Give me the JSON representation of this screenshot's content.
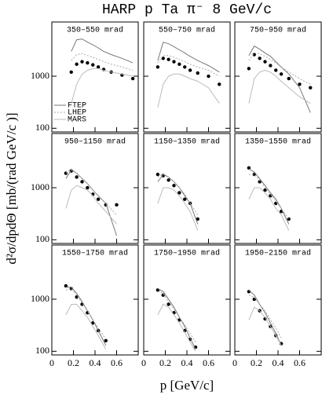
{
  "title": "HARP p Ta π⁻ 8 GeV/c",
  "x_label": "p [GeV/c]",
  "y_label": "d²σ/dpdΘ [mb/(rad GeV/c )]",
  "chart_data": [
    {
      "type": "line",
      "annotation": "350–550 mrad",
      "xlim": [
        0,
        0.8
      ],
      "xticks": [
        0,
        0.2,
        0.4,
        0.6
      ],
      "ylim": [
        85,
        11000
      ],
      "yticks": [
        100,
        1000
      ],
      "log_y": true,
      "x": [
        0.18,
        0.23,
        0.28,
        0.33,
        0.38,
        0.43,
        0.48,
        0.55,
        0.65,
        0.75
      ],
      "series": [
        {
          "color": "#000000",
          "marker": true,
          "values": [
            1200,
            1700,
            1900,
            1800,
            1650,
            1500,
            1350,
            1200,
            1050,
            900
          ]
        },
        {
          "name": "FTEP",
          "color": "#777777",
          "values": [
            3000,
            5000,
            5200,
            4500,
            4000,
            3500,
            3000,
            2600,
            2200,
            1800
          ]
        },
        {
          "name": "LHEP",
          "color": "#aaaaaa",
          "dashed": true,
          "values": [
            2000,
            2600,
            2700,
            2500,
            2300,
            2100,
            1900,
            1700,
            1500,
            1300
          ]
        },
        {
          "name": "MARS",
          "color": "#bbbbbb",
          "values": [
            300,
            700,
            1100,
            1300,
            1400,
            1400,
            1300,
            1200,
            1100,
            1000
          ]
        }
      ]
    },
    {
      "type": "line",
      "annotation": "550–750 mrad",
      "xlim": [
        0,
        0.8
      ],
      "xticks": [
        0,
        0.2,
        0.4,
        0.6
      ],
      "ylim": [
        85,
        11000
      ],
      "yticks": [
        100,
        1000
      ],
      "log_y": true,
      "x": [
        0.13,
        0.18,
        0.23,
        0.28,
        0.33,
        0.38,
        0.43,
        0.5,
        0.6,
        0.7
      ],
      "series": [
        {
          "color": "#000000",
          "marker": true,
          "values": [
            1500,
            2200,
            2100,
            1900,
            1700,
            1500,
            1300,
            1150,
            1000,
            700
          ]
        },
        {
          "color": "#777777",
          "values": [
            2000,
            4500,
            4200,
            3700,
            3200,
            2800,
            2400,
            2000,
            1600,
            1200
          ]
        },
        {
          "color": "#aaaaaa",
          "dashed": true,
          "values": [
            1800,
            2500,
            2500,
            2300,
            2100,
            1900,
            1700,
            1500,
            1300,
            1000
          ]
        },
        {
          "color": "#bbbbbb",
          "values": [
            250,
            700,
            1000,
            1100,
            1100,
            1000,
            900,
            800,
            600,
            300
          ]
        }
      ]
    },
    {
      "type": "line",
      "annotation": "750–950 mrad",
      "xlim": [
        0,
        0.8
      ],
      "xticks": [
        0,
        0.2,
        0.4,
        0.6
      ],
      "ylim": [
        85,
        11000
      ],
      "yticks": [
        100,
        1000
      ],
      "log_y": true,
      "x": [
        0.13,
        0.18,
        0.23,
        0.28,
        0.33,
        0.38,
        0.43,
        0.5,
        0.6,
        0.7
      ],
      "series": [
        {
          "color": "#000000",
          "marker": true,
          "values": [
            1400,
            2600,
            2200,
            1900,
            1600,
            1300,
            1100,
            900,
            700,
            600
          ]
        },
        {
          "color": "#777777",
          "values": [
            2500,
            3800,
            3300,
            2800,
            2400,
            1900,
            1500,
            1100,
            600,
            200
          ]
        },
        {
          "color": "#aaaaaa",
          "dashed": true,
          "values": [
            2000,
            2800,
            2700,
            2400,
            2100,
            1800,
            1500,
            1200,
            900,
            700
          ]
        },
        {
          "color": "#bbbbbb",
          "values": [
            300,
            900,
            1200,
            1300,
            1200,
            1000,
            800,
            600,
            400,
            300
          ]
        }
      ]
    },
    {
      "type": "line",
      "annotation": "950–1150 mrad",
      "xlim": [
        0,
        0.8
      ],
      "xticks": [
        0,
        0.2,
        0.4,
        0.6
      ],
      "ylim": [
        85,
        11000
      ],
      "yticks": [
        100,
        1000
      ],
      "log_y": true,
      "x": [
        0.13,
        0.18,
        0.23,
        0.28,
        0.33,
        0.38,
        0.43,
        0.5,
        0.6
      ],
      "series": [
        {
          "color": "#000000",
          "marker": true,
          "values": [
            1900,
            2100,
            1600,
            1300,
            1000,
            750,
            600,
            470,
            470
          ]
        },
        {
          "color": "#777777",
          "values": [
            1500,
            2200,
            1900,
            1500,
            1200,
            900,
            700,
            500,
            120
          ]
        },
        {
          "color": "#aaaaaa",
          "dashed": true,
          "values": [
            1900,
            2300,
            1900,
            1500,
            1200,
            900,
            700,
            500,
            300
          ]
        },
        {
          "color": "#bbbbbb",
          "values": [
            400,
            900,
            1100,
            1000,
            900,
            700,
            500,
            350,
            200
          ]
        }
      ]
    },
    {
      "type": "line",
      "annotation": "1150–1350 mrad",
      "xlim": [
        0,
        0.8
      ],
      "xticks": [
        0,
        0.2,
        0.4,
        0.6
      ],
      "ylim": [
        85,
        11000
      ],
      "yticks": [
        100,
        1000
      ],
      "log_y": true,
      "x": [
        0.13,
        0.18,
        0.23,
        0.28,
        0.33,
        0.38,
        0.43,
        0.5
      ],
      "series": [
        {
          "color": "#000000",
          "marker": true,
          "values": [
            1800,
            1700,
            1400,
            1100,
            800,
            600,
            500,
            250
          ]
        },
        {
          "color": "#777777",
          "values": [
            1300,
            1800,
            1600,
            1300,
            1000,
            700,
            500,
            200
          ]
        },
        {
          "color": "#aaaaaa",
          "dashed": true,
          "values": [
            1600,
            1900,
            1600,
            1300,
            1000,
            750,
            500,
            300
          ]
        },
        {
          "color": "#bbbbbb",
          "values": [
            500,
            1000,
            1000,
            900,
            700,
            500,
            350,
            150
          ]
        }
      ]
    },
    {
      "type": "line",
      "annotation": "1350–1550 mrad",
      "xlim": [
        0,
        0.8
      ],
      "xticks": [
        0,
        0.2,
        0.4,
        0.6
      ],
      "ylim": [
        85,
        11000
      ],
      "yticks": [
        100,
        1000
      ],
      "log_y": true,
      "x": [
        0.13,
        0.18,
        0.23,
        0.28,
        0.33,
        0.38,
        0.43,
        0.5
      ],
      "series": [
        {
          "color": "#000000",
          "marker": true,
          "values": [
            2400,
            1800,
            1300,
            900,
            700,
            500,
            350,
            250
          ]
        },
        {
          "color": "#777777",
          "values": [
            2300,
            2000,
            1500,
            1100,
            800,
            600,
            400,
            200
          ]
        },
        {
          "color": "#aaaaaa",
          "dashed": true,
          "values": [
            1800,
            1800,
            1400,
            1000,
            750,
            550,
            400,
            250
          ]
        },
        {
          "color": "#bbbbbb",
          "values": [
            600,
            1000,
            1000,
            800,
            600,
            400,
            300,
            150
          ]
        }
      ]
    },
    {
      "type": "line",
      "annotation": "1550–1750 mrad",
      "xlim": [
        0,
        0.8
      ],
      "xticks": [
        0,
        0.2,
        0.4,
        0.6
      ],
      "ylim": [
        85,
        11000
      ],
      "yticks": [
        100,
        1000
      ],
      "log_y": true,
      "x": [
        0.13,
        0.18,
        0.23,
        0.28,
        0.33,
        0.38,
        0.43,
        0.5
      ],
      "series": [
        {
          "color": "#000000",
          "marker": true,
          "values": [
            1800,
            1600,
            1100,
            800,
            550,
            350,
            250,
            160
          ]
        },
        {
          "color": "#777777",
          "values": [
            1700,
            1700,
            1300,
            900,
            600,
            400,
            250,
            130
          ]
        },
        {
          "color": "#aaaaaa",
          "dashed": true,
          "values": [
            1500,
            1600,
            1200,
            850,
            600,
            400,
            280,
            170
          ]
        },
        {
          "color": "#bbbbbb",
          "values": [
            500,
            800,
            800,
            600,
            450,
            300,
            200,
            110
          ]
        }
      ]
    },
    {
      "type": "line",
      "annotation": "1750–1950 mrad",
      "xlim": [
        0,
        0.8
      ],
      "xticks": [
        0,
        0.2,
        0.4,
        0.6
      ],
      "ylim": [
        85,
        11000
      ],
      "yticks": [
        100,
        1000
      ],
      "log_y": true,
      "x": [
        0.13,
        0.18,
        0.23,
        0.28,
        0.33,
        0.38,
        0.43,
        0.48
      ],
      "series": [
        {
          "color": "#000000",
          "marker": true,
          "values": [
            1500,
            1200,
            800,
            550,
            400,
            250,
            170,
            120
          ]
        },
        {
          "color": "#777777",
          "values": [
            1600,
            1400,
            1000,
            700,
            450,
            300,
            180,
            110
          ]
        },
        {
          "color": "#aaaaaa",
          "dashed": true,
          "values": [
            1400,
            1300,
            900,
            650,
            450,
            320,
            220,
            150
          ]
        },
        {
          "color": "#bbbbbb",
          "values": [
            500,
            800,
            700,
            500,
            350,
            230,
            150,
            100
          ]
        }
      ]
    },
    {
      "type": "line",
      "annotation": "1950–2150 mrad",
      "xlim": [
        0,
        0.8
      ],
      "xticks": [
        0,
        0.2,
        0.4,
        0.6
      ],
      "ylim": [
        85,
        11000
      ],
      "yticks": [
        100,
        1000
      ],
      "log_y": true,
      "x": [
        0.13,
        0.18,
        0.23,
        0.28,
        0.33,
        0.38,
        0.43
      ],
      "series": [
        {
          "color": "#000000",
          "marker": true,
          "values": [
            1400,
            1000,
            600,
            420,
            300,
            200,
            140
          ]
        },
        {
          "color": "#777777",
          "values": [
            1500,
            1200,
            800,
            550,
            350,
            220,
            130
          ]
        },
        {
          "color": "#aaaaaa",
          "dashed": true,
          "values": [
            1200,
            1100,
            800,
            600,
            400,
            280,
            180
          ]
        },
        {
          "color": "#bbbbbb",
          "values": [
            400,
            700,
            600,
            450,
            300,
            200,
            130
          ]
        }
      ]
    }
  ]
}
